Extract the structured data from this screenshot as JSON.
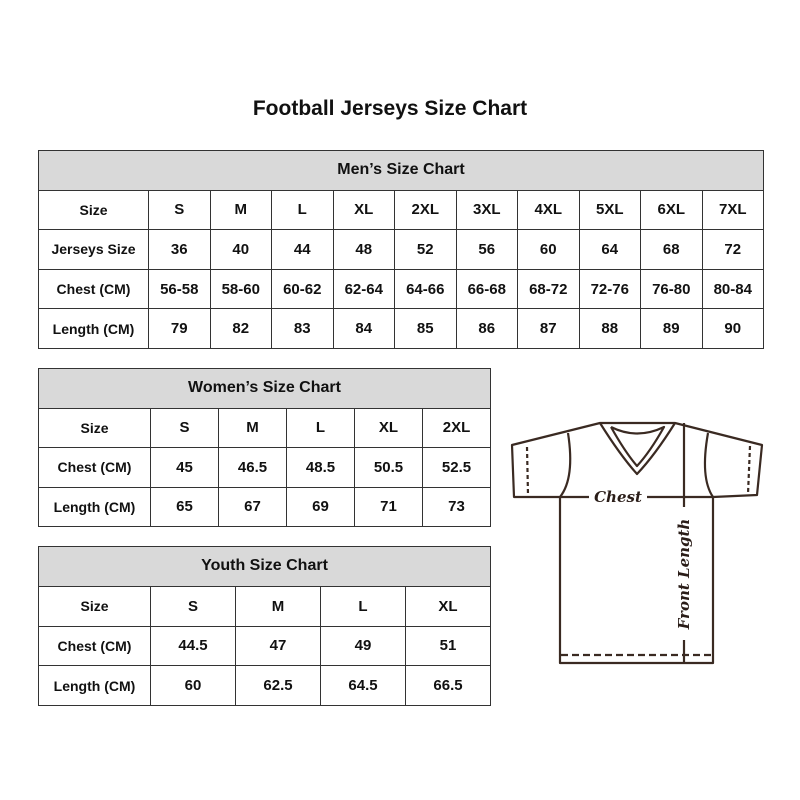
{
  "title": "Football Jerseys Size Chart",
  "men": {
    "heading": "Men’s Size Chart",
    "rows": [
      {
        "label": "Size",
        "values": [
          "S",
          "M",
          "L",
          "XL",
          "2XL",
          "3XL",
          "4XL",
          "5XL",
          "6XL",
          "7XL"
        ]
      },
      {
        "label": "Jerseys Size",
        "values": [
          "36",
          "40",
          "44",
          "48",
          "52",
          "56",
          "60",
          "64",
          "68",
          "72"
        ]
      },
      {
        "label": "Chest (CM)",
        "values": [
          "56-58",
          "58-60",
          "60-62",
          "62-64",
          "64-66",
          "66-68",
          "68-72",
          "72-76",
          "76-80",
          "80-84"
        ]
      },
      {
        "label": "Length (CM)",
        "values": [
          "79",
          "82",
          "83",
          "84",
          "85",
          "86",
          "87",
          "88",
          "89",
          "90"
        ]
      }
    ]
  },
  "women": {
    "heading": "Women’s Size Chart",
    "rows": [
      {
        "label": "Size",
        "values": [
          "S",
          "M",
          "L",
          "XL",
          "2XL"
        ]
      },
      {
        "label": "Chest (CM)",
        "values": [
          "45",
          "46.5",
          "48.5",
          "50.5",
          "52.5"
        ]
      },
      {
        "label": "Length (CM)",
        "values": [
          "65",
          "67",
          "69",
          "71",
          "73"
        ]
      }
    ]
  },
  "youth": {
    "heading": "Youth Size Chart",
    "rows": [
      {
        "label": "Size",
        "values": [
          "S",
          "M",
          "L",
          "XL"
        ]
      },
      {
        "label": "Chest (CM)",
        "values": [
          "44.5",
          "47",
          "49",
          "51"
        ]
      },
      {
        "label": "Length (CM)",
        "values": [
          "60",
          "62.5",
          "64.5",
          "66.5"
        ]
      }
    ]
  },
  "diagram": {
    "chest_label": "Chest",
    "length_label": "Front Length",
    "line_color": "#3a2a22"
  }
}
